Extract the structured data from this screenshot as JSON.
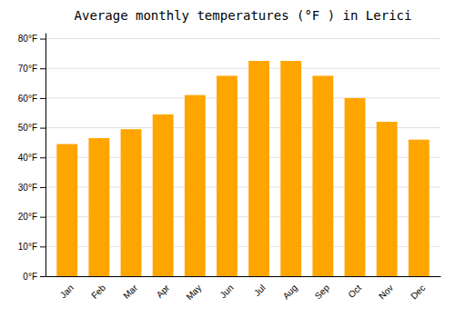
{
  "chart_data": {
    "type": "bar",
    "title": "Average monthly temperatures (°F ) in Lerici",
    "categories": [
      "Jan",
      "Feb",
      "Mar",
      "Apr",
      "May",
      "Jun",
      "Jul",
      "Aug",
      "Sep",
      "Oct",
      "Nov",
      "Dec"
    ],
    "values": [
      44.5,
      46.5,
      49.5,
      54.5,
      61,
      67.5,
      72.5,
      72.5,
      67.5,
      60,
      52,
      46
    ],
    "color": "#FFA500",
    "ylim": [
      0,
      82
    ],
    "yticks": [
      {
        "value": 0,
        "label": "0°F"
      },
      {
        "value": 10,
        "label": "10°F"
      },
      {
        "value": 20,
        "label": "20°F"
      },
      {
        "value": 30,
        "label": "30°F"
      },
      {
        "value": 40,
        "label": "40°F"
      },
      {
        "value": 50,
        "label": "50°F"
      },
      {
        "value": 60,
        "label": "60°F"
      },
      {
        "value": 70,
        "label": "70°F"
      },
      {
        "value": 80,
        "label": "80°F"
      }
    ],
    "grid": true
  }
}
